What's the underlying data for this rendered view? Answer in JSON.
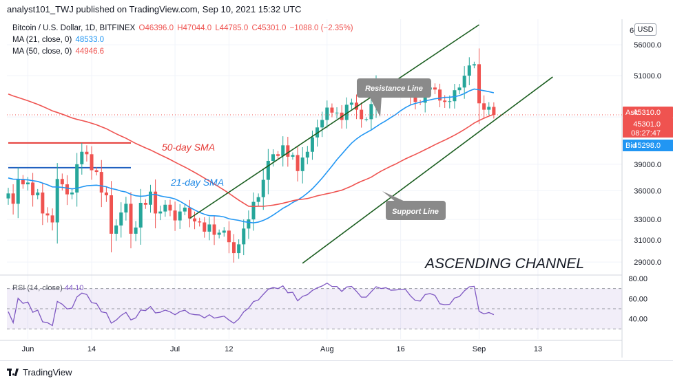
{
  "header": {
    "published_text": "analyst101_TWJ published on TradingView.com, Sep 10, 2021 15:32 UTC"
  },
  "legend": {
    "symbol": "Bitcoin / U.S. Dollar, 1D, BITFINEX",
    "ohlc": {
      "open": "O46396.0",
      "high": "H47044.0",
      "low": "L44785.0",
      "close": "C45301.0",
      "change": "−1088.0 (−2.35%)"
    },
    "ma21": {
      "label": "MA (21, close, 0)",
      "value": "48533.0",
      "color": "#2196f3"
    },
    "ma50": {
      "label": "MA (50, close, 0)",
      "value": "44946.6",
      "color": "#ef5350"
    }
  },
  "price_axis": {
    "currency": "USD",
    "ask": {
      "label": "Ask",
      "value": "45310.0"
    },
    "last": {
      "value": "45301.0",
      "countdown": "08:27:47"
    },
    "bid": {
      "label": "Bid",
      "value": "45298.0"
    }
  },
  "rsi": {
    "label": "RSI (14, close)",
    "value": "44.10"
  },
  "annotations": {
    "resistance": "Resistance Line",
    "support": "Support Line",
    "sma50": "50-day SMA",
    "sma21": "21-day SMA",
    "pattern": "ASCENDING CHANNEL"
  },
  "footer": {
    "brand": "TradingView"
  },
  "chart_data": {
    "type": "candlestick",
    "ylim": [
      28000,
      60500
    ],
    "y_scale": "log",
    "y_ticks": [
      29000,
      31000,
      33000,
      36000,
      39000,
      45000,
      51000,
      56000
    ],
    "y_tick_labels": [
      "29000.0",
      "31000.0",
      "33000.0",
      "36000.0",
      "39000.0",
      "45000.0",
      "51000.0",
      "56000.0"
    ],
    "y_top_partial_label": "60",
    "x_tick_labels": [
      {
        "label": "Jun",
        "date": "2021-06-01"
      },
      {
        "label": "14",
        "date": "2021-06-14"
      },
      {
        "label": "Jul",
        "date": "2021-07-01"
      },
      {
        "label": "12",
        "date": "2021-07-12"
      },
      {
        "label": "Aug",
        "date": "2021-08-01"
      },
      {
        "label": "16",
        "date": "2021-08-16"
      },
      {
        "label": "Sep",
        "date": "2021-09-01"
      },
      {
        "label": "13",
        "date": "2021-09-13"
      }
    ],
    "date_range": [
      "2021-05-28",
      "2021-09-10"
    ],
    "closes": [
      35700,
      34600,
      37300,
      36700,
      36900,
      35500,
      35800,
      33600,
      33400,
      32700,
      37300,
      36700,
      35600,
      35800,
      39000,
      40500,
      40200,
      38300,
      38100,
      35800,
      35500,
      31600,
      32400,
      33700,
      34600,
      31600,
      32200,
      34700,
      34500,
      35900,
      33600,
      33800,
      34500,
      33900,
      32900,
      33800,
      34200,
      33100,
      32800,
      32700,
      31800,
      32500,
      31500,
      31700,
      31900,
      30800,
      29800,
      30600,
      32100,
      33000,
      34800,
      35300,
      37200,
      39400,
      40200,
      40000,
      41300,
      39900,
      40100,
      38200,
      39800,
      40500,
      42300,
      43600,
      44600,
      46300,
      45600,
      45600,
      44600,
      46700,
      47000,
      46000,
      44700,
      44700,
      46800,
      49300,
      48900,
      49300,
      48800,
      48900,
      49100,
      49100,
      48000,
      47100,
      47000,
      48900,
      49200,
      48900,
      47300,
      47100,
      47200,
      48800,
      49200,
      51000,
      52600,
      52800,
      46900,
      46000,
      46400,
      45300
    ],
    "ma21_end": 48533.0,
    "ma50_end": 44946.6,
    "levels": [
      {
        "name": "ma50-resistance-level",
        "value": 41600,
        "from": "2021-05-28",
        "to": "2021-06-22"
      },
      {
        "name": "ma21-support-level",
        "value": 38600,
        "from": "2021-05-28",
        "to": "2021-06-22"
      }
    ],
    "channel": {
      "upper": [
        {
          "date": "2021-07-04",
          "value": 33100
        },
        {
          "date": "2021-09-01",
          "value": 59500
        }
      ],
      "lower": [
        {
          "date": "2021-07-27",
          "value": 28900
        },
        {
          "date": "2021-09-16",
          "value": 50800
        }
      ]
    },
    "rsi": {
      "ylim": [
        20,
        80
      ],
      "ticks": [
        40,
        60,
        80
      ],
      "tick_labels": [
        "40.00",
        "60.00",
        "80.00"
      ],
      "band": [
        30,
        70
      ],
      "last": 44.1
    }
  }
}
